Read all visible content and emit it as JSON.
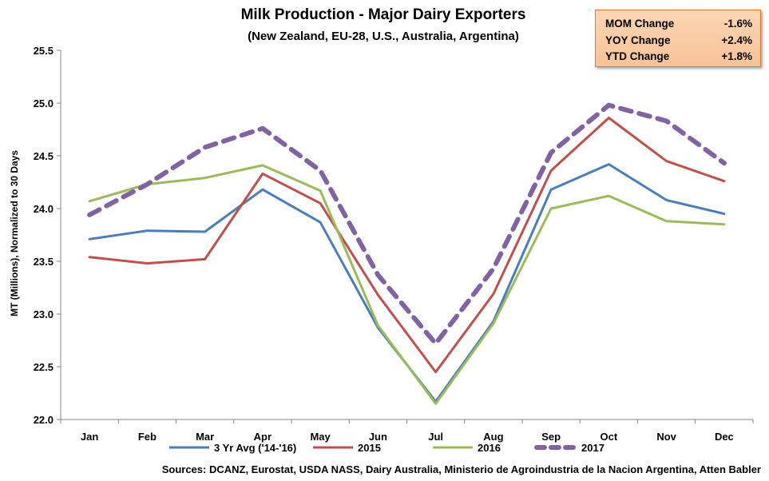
{
  "chart_data": {
    "type": "line",
    "title": "Milk Production - Major Dairy Exporters",
    "subtitle": "(New Zealand, EU-28, U.S., Australia,  Argentina)",
    "ylabel": "MT (Millions), Normalized to 30 Days",
    "xlabel": "",
    "categories": [
      "Jan",
      "Feb",
      "Mar",
      "Apr",
      "May",
      "Jun",
      "Jul",
      "Aug",
      "Sep",
      "Oct",
      "Nov",
      "Dec"
    ],
    "ylim": [
      22.0,
      25.5
    ],
    "yticks": [
      "22.0",
      "22.5",
      "23.0",
      "23.5",
      "24.0",
      "24.5",
      "25.0",
      "25.5"
    ],
    "grid": false,
    "legend": "bottom",
    "series": [
      {
        "name": "3 Yr Avg ('14-'16)",
        "color": "#4a7ebb",
        "dashed": false,
        "values": [
          23.71,
          23.79,
          23.78,
          24.18,
          23.87,
          22.87,
          22.17,
          22.93,
          24.18,
          24.42,
          24.08,
          23.95
        ]
      },
      {
        "name": "2015",
        "color": "#c0504d",
        "dashed": false,
        "values": [
          23.54,
          23.48,
          23.52,
          24.33,
          24.05,
          23.18,
          22.45,
          23.19,
          24.36,
          24.86,
          24.45,
          24.26
        ]
      },
      {
        "name": "2016",
        "color": "#9bbb59",
        "dashed": false,
        "values": [
          24.07,
          24.23,
          24.29,
          24.41,
          24.17,
          22.89,
          22.15,
          22.91,
          24.0,
          24.12,
          23.88,
          23.85
        ]
      },
      {
        "name": "2017",
        "color": "#8064a2",
        "dashed": true,
        "values": [
          23.94,
          24.23,
          24.58,
          24.76,
          24.36,
          23.37,
          22.72,
          23.43,
          24.53,
          24.98,
          24.83,
          24.43
        ]
      }
    ]
  },
  "stats": [
    {
      "label": "MOM Change",
      "value": "-1.6%"
    },
    {
      "label": "YOY Change",
      "value": "+2.4%"
    },
    {
      "label": "YTD Change",
      "value": "+1.8%"
    }
  ],
  "source": "Sources: DCANZ, Eurostat, USDA NASS, Dairy Australia, Ministerio de Agroindustria de la Nacion Argentina, Atten Babler"
}
